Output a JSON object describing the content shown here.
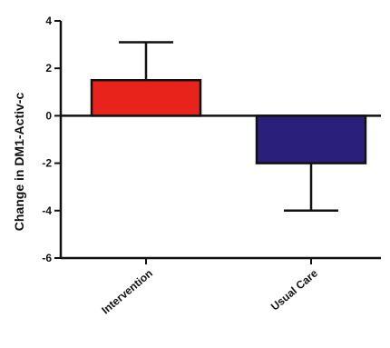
{
  "chart_data": {
    "type": "bar",
    "title": "",
    "xlabel": "",
    "ylabel": "Change in  DM1-Activ-c",
    "categories": [
      "Intervention",
      "Usual Care"
    ],
    "values": [
      1.5,
      -2.0
    ],
    "error_upper": [
      1.6,
      2.0
    ],
    "colors": [
      "#e8231c",
      "#2a1f7a"
    ],
    "ylim": [
      -6,
      4
    ],
    "yticks": [
      4,
      2,
      0,
      -2,
      -4,
      -6
    ],
    "grid": false,
    "legend": "none"
  }
}
